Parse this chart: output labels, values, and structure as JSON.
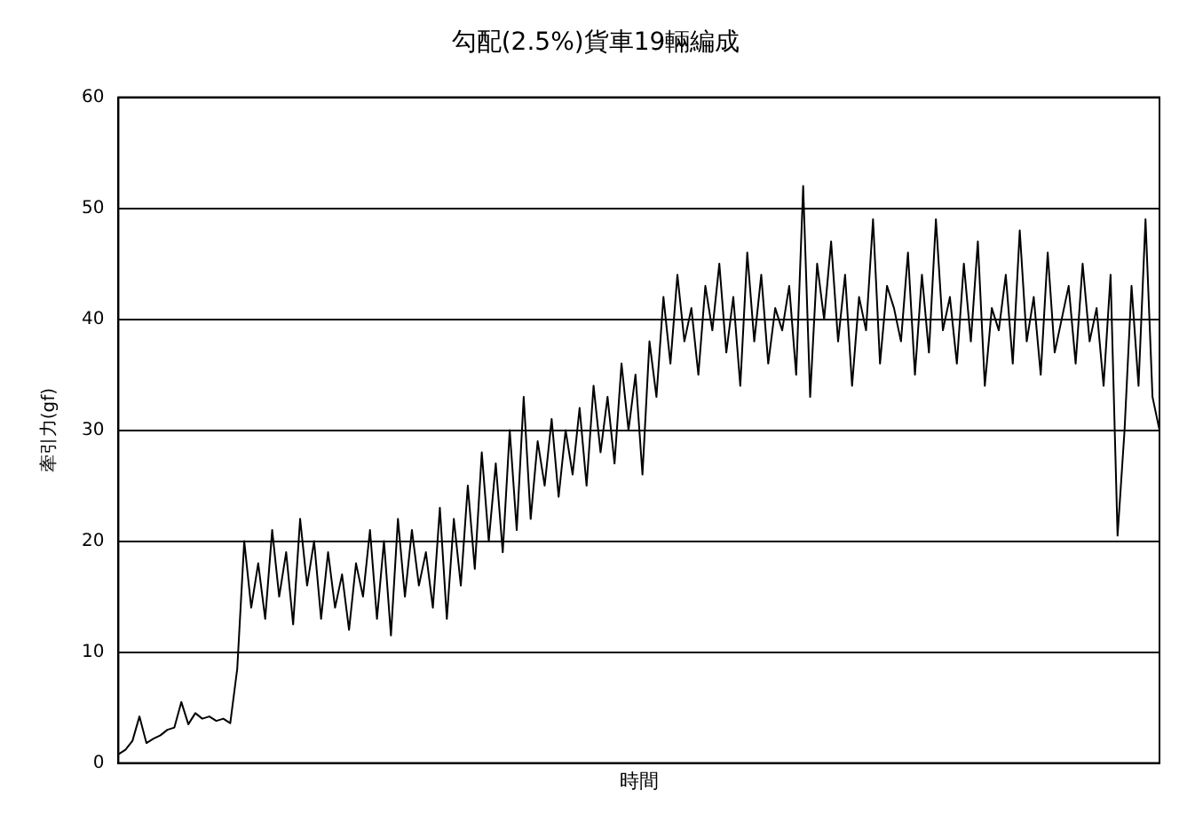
{
  "chart_data": {
    "type": "line",
    "title": "勾配(2.5%)貨車19輛編成",
    "xlabel": "時間",
    "ylabel": "牽引力(gf)",
    "categories": [
      null,
      null,
      null,
      null,
      null,
      null,
      null,
      null,
      null,
      null,
      null,
      null,
      null,
      null,
      null,
      null,
      null,
      null,
      null,
      null,
      null,
      null,
      null,
      null,
      null,
      null,
      null,
      null,
      null,
      null,
      null,
      null,
      null,
      null,
      null,
      null,
      null,
      null,
      null,
      null,
      null,
      null,
      null,
      null,
      null,
      null,
      null,
      null,
      null,
      null,
      null,
      null,
      null,
      null,
      null,
      null,
      null,
      null,
      null,
      null,
      null,
      null,
      null,
      null,
      null,
      null,
      null,
      null,
      null,
      null,
      null,
      null,
      null,
      null,
      null,
      null,
      null,
      null,
      null,
      null,
      null,
      null,
      null,
      null,
      null,
      null,
      null,
      null,
      null,
      null,
      null,
      null,
      null,
      null,
      null,
      null,
      null,
      null,
      null,
      null,
      null,
      null,
      null,
      null,
      null,
      null,
      null,
      null,
      null,
      null,
      null,
      null,
      null,
      null,
      null,
      null,
      null,
      null,
      null,
      null,
      null,
      null,
      null,
      null,
      null,
      null,
      null,
      null,
      null,
      null,
      null,
      null,
      null,
      null,
      null,
      null,
      null,
      null,
      null,
      null,
      null,
      null,
      null,
      null,
      null,
      null,
      null,
      null,
      null,
      null
    ],
    "series": [
      {
        "color": "#000000",
        "values": [
          0.8,
          1.2,
          2,
          4.2,
          1.8,
          2.2,
          2.5,
          3,
          3.2,
          5.5,
          3.5,
          4.5,
          4,
          4.2,
          3.8,
          4,
          3.6,
          8.5,
          20,
          14,
          18,
          13,
          21,
          15,
          19,
          12.5,
          22,
          16,
          20,
          13,
          19,
          14,
          17,
          12,
          18,
          15,
          21,
          13,
          20,
          11.5,
          22,
          15,
          21,
          16,
          19,
          14,
          23,
          13,
          22,
          16,
          25,
          17.5,
          28,
          20,
          27,
          19,
          30,
          21,
          33,
          22,
          29,
          25,
          31,
          24,
          30,
          26,
          32,
          25,
          34,
          28,
          33,
          27,
          36,
          30,
          35,
          26,
          38,
          33,
          42,
          36,
          44,
          38,
          41,
          35,
          43,
          39,
          45,
          37,
          42,
          34,
          46,
          38,
          44,
          36,
          41,
          39,
          43,
          35,
          52,
          33,
          45,
          40,
          47,
          38,
          44,
          34,
          42,
          39,
          49,
          36,
          43,
          41,
          38,
          46,
          35,
          44,
          37,
          49,
          39,
          42,
          36,
          45,
          38,
          47,
          34,
          41,
          39,
          44,
          36,
          48,
          38,
          42,
          35,
          46,
          37,
          40,
          43,
          36,
          45,
          38,
          41,
          34,
          44,
          20.5,
          30,
          43,
          34,
          49,
          33,
          30
        ]
      }
    ],
    "ylim": [
      0,
      60
    ],
    "yticks": [
      0,
      10,
      20,
      30,
      40,
      50,
      60
    ],
    "grid": "y",
    "tick_labels": "y",
    "legend": false,
    "marker": "none",
    "line_style": "solid"
  }
}
